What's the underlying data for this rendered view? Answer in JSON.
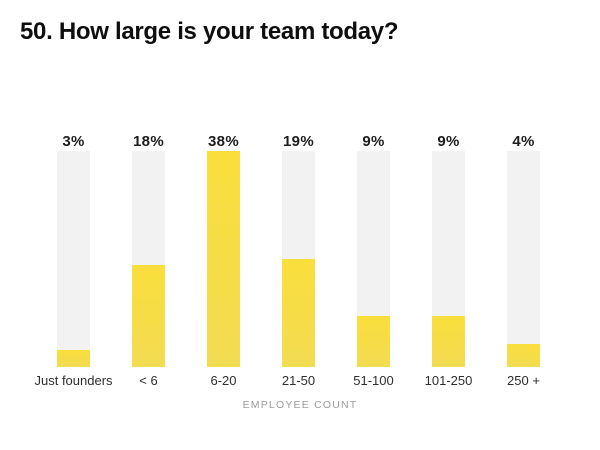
{
  "colors": {
    "background": "#FFFFFF",
    "bar_track": "#F2F2F3",
    "bar_fill_top": "#FADE3C",
    "bar_fill_bottom": "#F2DC52",
    "title_text": "#0E0E0E",
    "value_label_text": "#1D1D1D",
    "category_label_text": "#2E2E2E",
    "axis_label_text": "#9B9B9B"
  },
  "chart_data": {
    "type": "bar",
    "title": "50. How large is your team today?",
    "xlabel": "EMPLOYEE COUNT",
    "ylabel": "",
    "categories": [
      "Just founders",
      "< 6",
      "6-20",
      "21-50",
      "51-100",
      "101-250",
      "250 +"
    ],
    "values": [
      3,
      18,
      38,
      19,
      9,
      9,
      4
    ],
    "value_labels": [
      "3%",
      "18%",
      "38%",
      "19%",
      "9%",
      "9%",
      "4%"
    ],
    "unit": "percent",
    "scale_max": 38,
    "grid": false,
    "legend_position": "none",
    "style": "vertical-track-fill-bars"
  }
}
